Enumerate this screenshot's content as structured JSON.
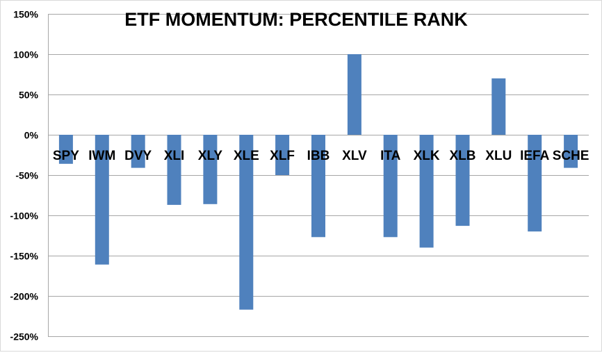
{
  "chart_data": {
    "type": "bar",
    "title": "ETF MOMENTUM: PERCENTILE RANK",
    "xlabel": "",
    "ylabel": "",
    "categories": [
      "SPY",
      "IWM",
      "DVY",
      "XLI",
      "XLY",
      "XLE",
      "XLF",
      "IBB",
      "XLV",
      "ITA",
      "XLK",
      "XLB",
      "XLU",
      "IEFA",
      "SCHE"
    ],
    "series": [
      {
        "values": [
          -36,
          -161,
          -41,
          -87,
          -86,
          -217,
          -50,
          -127,
          100,
          -127,
          -140,
          -113,
          70,
          -120,
          -41
        ]
      }
    ],
    "ylim": [
      -250,
      150
    ],
    "yticks": [
      150,
      100,
      50,
      0,
      -50,
      -100,
      -150,
      -200,
      -250
    ],
    "ytick_labels": [
      "150%",
      "100%",
      "50%",
      "0%",
      "-50%",
      "-100%",
      "-150%",
      "-200%",
      "-250%"
    ],
    "grid": true,
    "legend": "none",
    "bar_color": "#4F81BD",
    "grid_color": "#A6A6A6"
  }
}
